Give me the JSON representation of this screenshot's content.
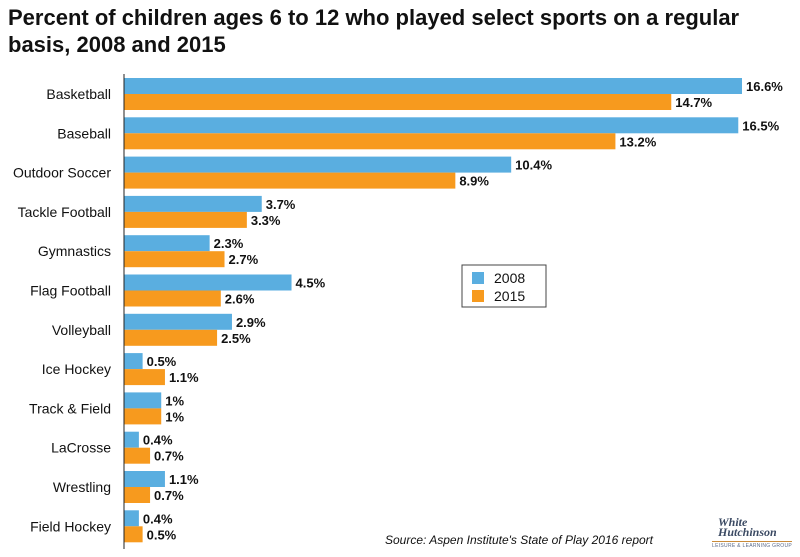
{
  "chart_data": {
    "type": "bar",
    "orientation": "horizontal",
    "title": "Percent of children ages 6 to 12 who played select sports on a regular basis, 2008 and 2015",
    "categories": [
      "Basketball",
      "Baseball",
      "Outdoor Soccer",
      "Tackle Football",
      "Gymnastics",
      "Flag Football",
      "Volleyball",
      "Ice Hockey",
      "Track & Field",
      "LaCrosse",
      "Wrestling",
      "Field Hockey"
    ],
    "series": [
      {
        "name": "2008",
        "color": "#5aaee0",
        "values": [
          16.6,
          16.5,
          10.4,
          3.7,
          2.3,
          4.5,
          2.9,
          0.5,
          1,
          0.4,
          1.1,
          0.4
        ],
        "labels": [
          "16.6%",
          "16.5%",
          "10.4%",
          "3.7%",
          "2.3%",
          "4.5%",
          "2.9%",
          "0.5%",
          "1%",
          "0.4%",
          "1.1%",
          "0.4%"
        ]
      },
      {
        "name": "2015",
        "color": "#f79a1e",
        "values": [
          14.7,
          13.2,
          8.9,
          3.3,
          2.7,
          2.6,
          2.5,
          1.1,
          1,
          0.7,
          0.7,
          0.5
        ],
        "labels": [
          "14.7%",
          "13.2%",
          "8.9%",
          "3.3%",
          "2.7%",
          "2.6%",
          "2.5%",
          "1.1%",
          "1%",
          "0.7%",
          "0.7%",
          "0.5%"
        ]
      }
    ],
    "xlim": [
      0,
      16.6
    ],
    "grid": false,
    "legend_position": "right-middle"
  },
  "source": "Source: Aspen Institute's State of Play 2016 report",
  "logo": {
    "line1": "White",
    "line2": "Hutchinson",
    "tagline": "LEISURE & LEARNING GROUP"
  }
}
